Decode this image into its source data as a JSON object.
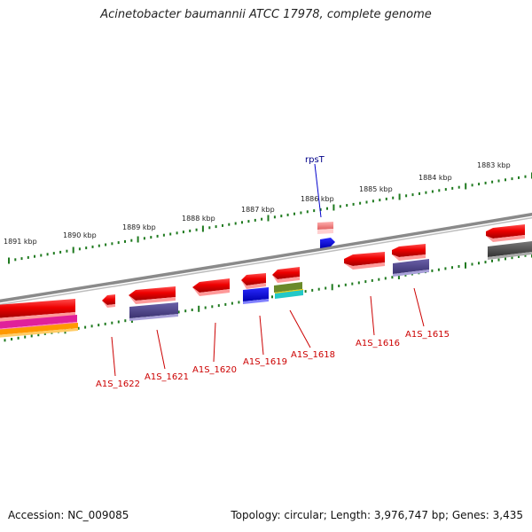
{
  "title": "Acinetobacter baumannii ATCC 17978, complete genome",
  "footer": {
    "accession": "Accession: NC_009085",
    "summary": "Topology: circular; Length: 3,976,747 bp; Genes: 3,435"
  },
  "scale_labels": [
    "1891 kbp",
    "1890 kbp",
    "1889 kbp",
    "1888 kbp",
    "1887 kbp",
    "1886 kbp",
    "1885 kbp",
    "1884 kbp",
    "1883 kbp"
  ],
  "gene_labels": [
    "A1S_1622",
    "A1S_1621",
    "A1S_1620",
    "A1S_1619",
    "A1S_1618",
    "A1S_1616",
    "A1S_1615"
  ],
  "feature_label": "rpsT",
  "colors": {
    "backbone": "#7a7a7a",
    "gene_red": "#e80000",
    "cds_purple": "#4e4488",
    "blue": "#0000e0",
    "pink": "#ff9090",
    "gray_gene": "#555555",
    "tick_green": "#1f7a1f",
    "label_red": "#cc0000",
    "label_navy": "#000088",
    "magenta": "#e0209a",
    "orange": "#ff9900",
    "olive": "#6a8a2a",
    "cyan": "#22c8c8"
  }
}
